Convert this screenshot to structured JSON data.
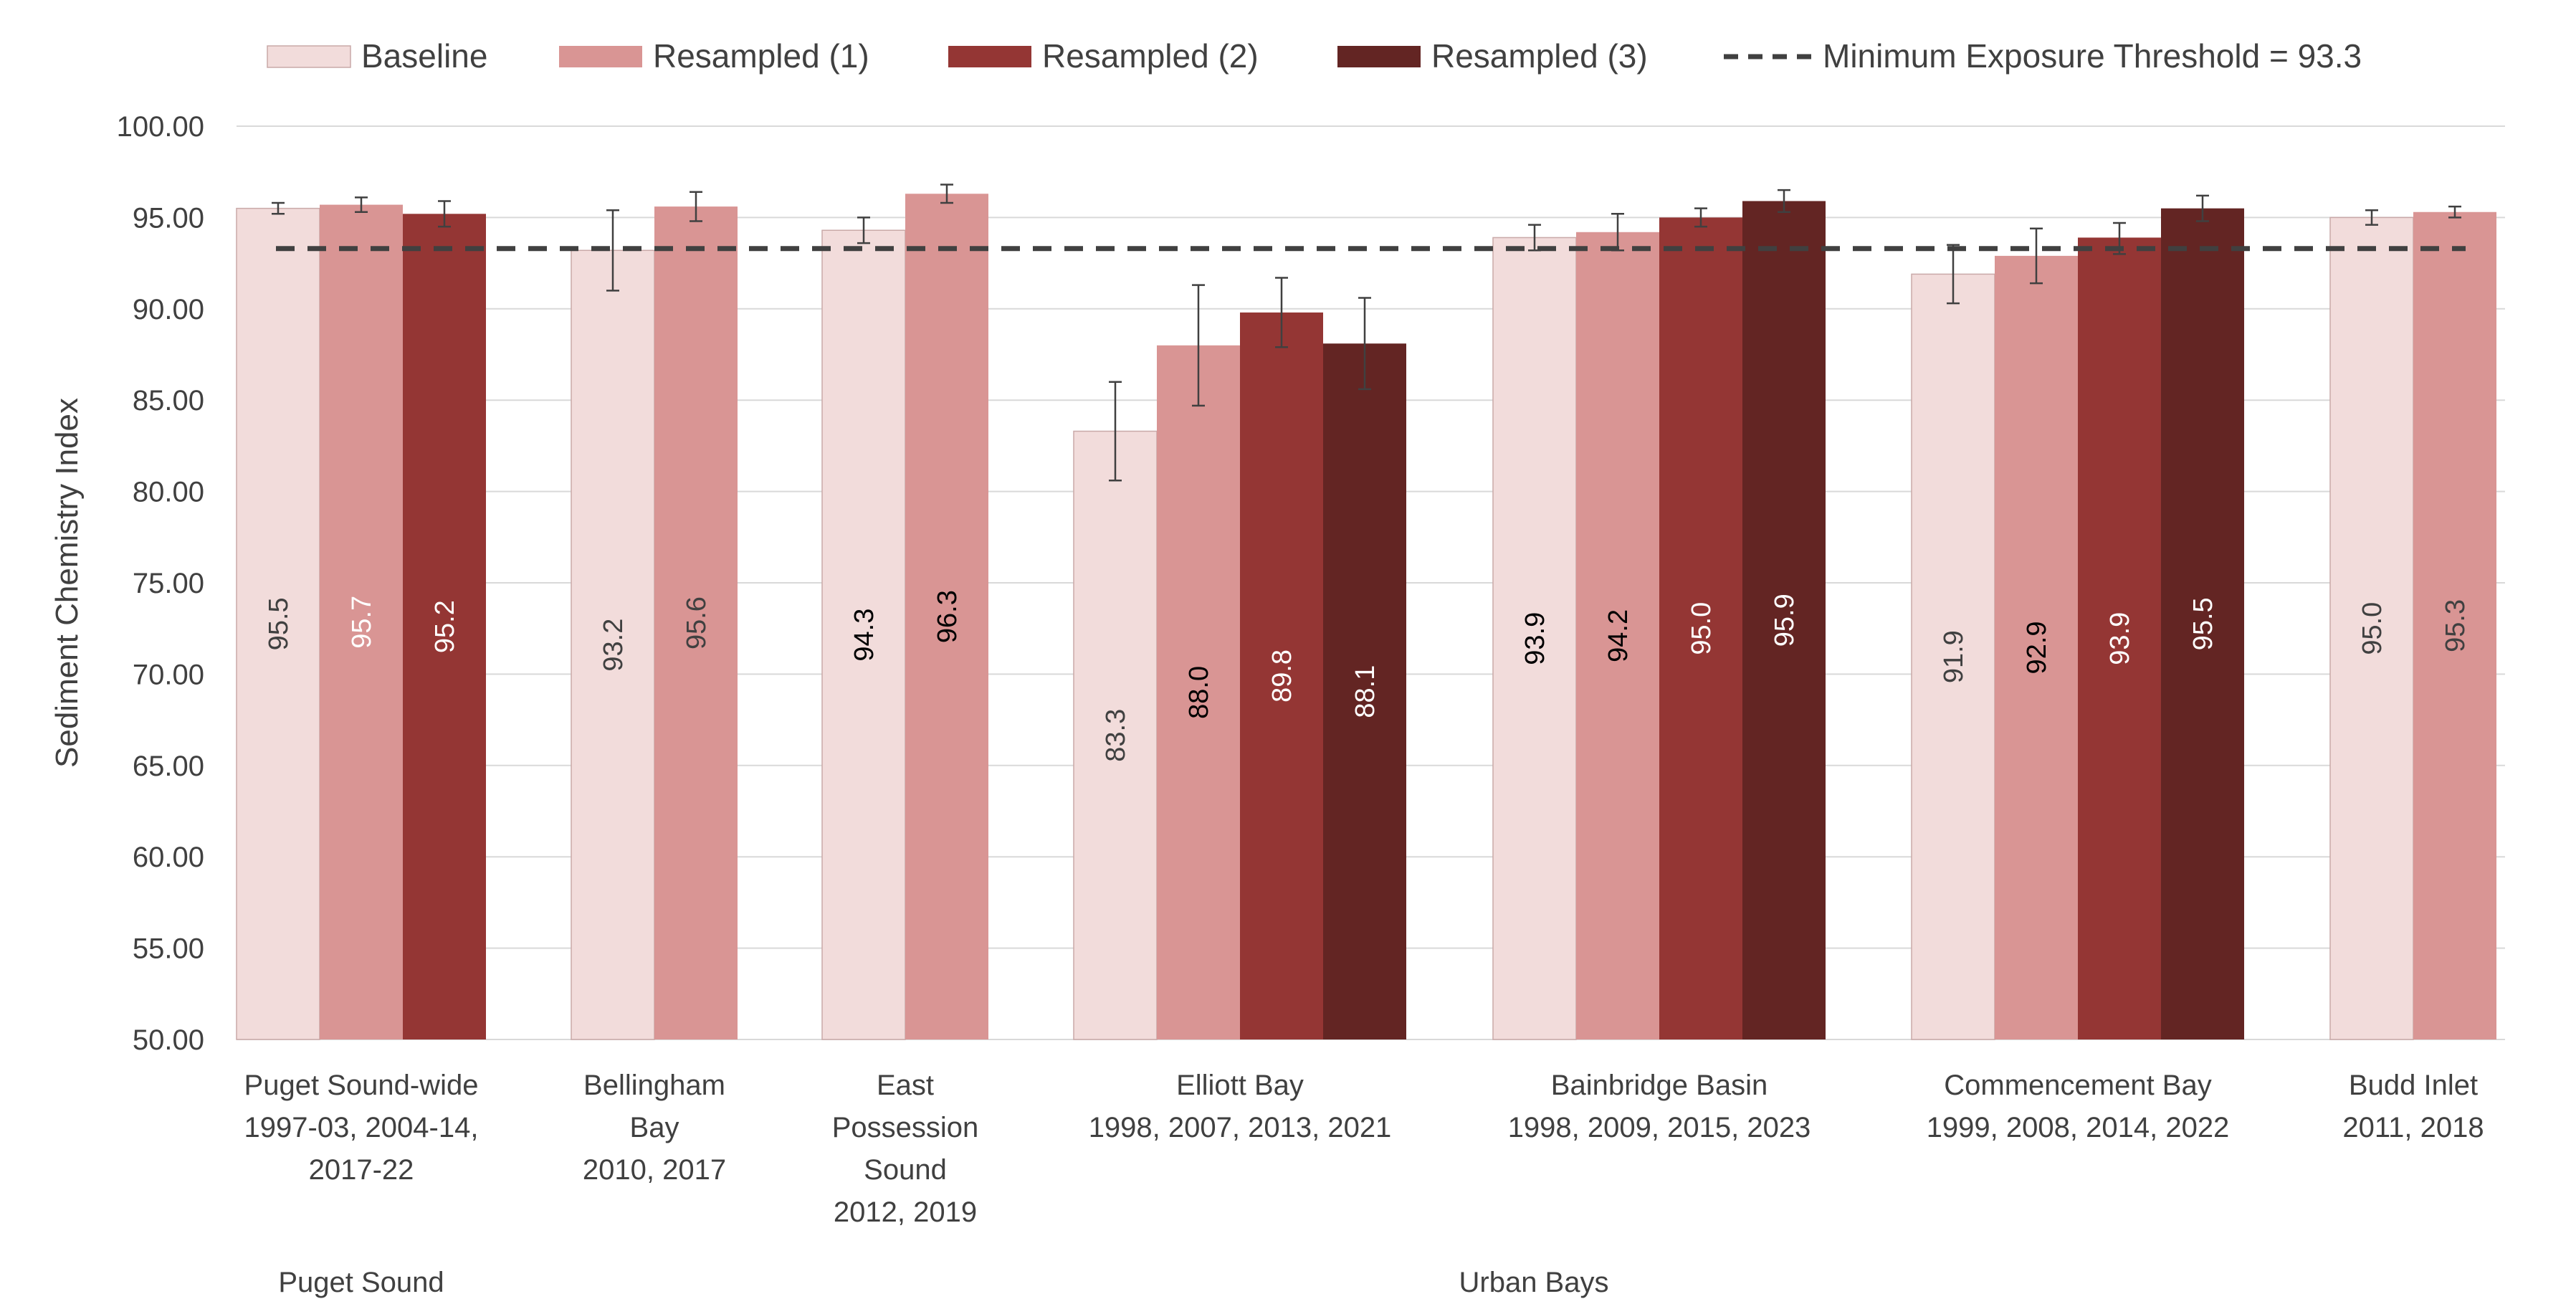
{
  "chart_data": {
    "type": "bar",
    "ylabel": "Sediment Chemistry Index",
    "ylim": [
      50,
      100
    ],
    "yticks": [
      "50.00",
      "55.00",
      "60.00",
      "65.00",
      "70.00",
      "75.00",
      "80.00",
      "85.00",
      "90.00",
      "95.00",
      "100.00"
    ],
    "grid": true,
    "legend_position": "top",
    "series": [
      {
        "name": "Baseline",
        "color": "#F2DCDB"
      },
      {
        "name": "Resampled (1)",
        "color": "#D99594"
      },
      {
        "name": "Resampled (2)",
        "color": "#943634"
      },
      {
        "name": "Resampled (3)",
        "color": "#632523"
      }
    ],
    "threshold": {
      "label": "Minimum Exposure Threshold = 93.3",
      "value": 93.3,
      "color": "#404040"
    },
    "categories": [
      {
        "lines": [
          "Puget Sound-wide",
          "1997-03, 2004-14,",
          "2017-22"
        ],
        "group": 0,
        "values": [
          95.5,
          95.7,
          95.2
        ],
        "labels": [
          "95.5",
          "95.7",
          "95.2"
        ],
        "err": [
          [
            95.2,
            95.8
          ],
          [
            95.3,
            96.1
          ],
          [
            94.5,
            95.9
          ]
        ]
      },
      {
        "lines": [
          "Bellingham",
          "Bay",
          "2010, 2017"
        ],
        "group": 1,
        "values": [
          93.2,
          95.6
        ],
        "labels": [
          "93.2",
          "95.6"
        ],
        "err": [
          [
            91.0,
            95.4
          ],
          [
            94.8,
            96.4
          ]
        ]
      },
      {
        "lines": [
          "East",
          "Possession",
          "Sound",
          "2012, 2019"
        ],
        "group": 1,
        "values": [
          94.3,
          96.3
        ],
        "labels": [
          "94.3",
          "96.3"
        ],
        "err": [
          [
            93.6,
            95.0
          ],
          [
            95.8,
            96.8
          ]
        ]
      },
      {
        "lines": [
          "Elliott Bay",
          "1998, 2007, 2013, 2021"
        ],
        "group": 1,
        "values": [
          83.3,
          88.0,
          89.8,
          88.1
        ],
        "labels": [
          "83.3",
          "88.0",
          "89.8",
          "88.1"
        ],
        "err": [
          [
            80.6,
            86.0
          ],
          [
            84.7,
            91.3
          ],
          [
            87.9,
            91.7
          ],
          [
            85.6,
            90.6
          ]
        ]
      },
      {
        "lines": [
          "Bainbridge Basin",
          "1998, 2009, 2015, 2023"
        ],
        "group": 1,
        "values": [
          93.9,
          94.2,
          95.0,
          95.9
        ],
        "labels": [
          "93.9",
          "94.2",
          "95.0",
          "95.9"
        ],
        "err": [
          [
            93.2,
            94.6
          ],
          [
            93.2,
            95.2
          ],
          [
            94.5,
            95.5
          ],
          [
            95.3,
            96.5
          ]
        ]
      },
      {
        "lines": [
          "Commencement Bay",
          "1999, 2008, 2014, 2022"
        ],
        "group": 1,
        "values": [
          91.9,
          92.9,
          93.9,
          95.5
        ],
        "labels": [
          "91.9",
          "92.9",
          "93.9",
          "95.5"
        ],
        "err": [
          [
            90.3,
            93.5
          ],
          [
            91.4,
            94.4
          ],
          [
            93.0,
            94.7
          ],
          [
            94.8,
            96.2
          ]
        ]
      },
      {
        "lines": [
          "Budd Inlet",
          "2011, 2018"
        ],
        "group": 1,
        "values": [
          95.0,
          95.3
        ],
        "labels": [
          "95.0",
          "95.3"
        ],
        "err": [
          [
            94.6,
            95.4
          ],
          [
            95.0,
            95.6
          ]
        ]
      }
    ],
    "groups": [
      "Puget Sound",
      "Urban Bays"
    ],
    "label_colors": [
      [
        "#404040",
        "#ffffff",
        "#ffffff"
      ],
      [
        "#404040",
        "#404040"
      ],
      [
        "#000000",
        "#000000"
      ],
      [
        "#404040",
        "#000000",
        "#ffffff",
        "#ffffff"
      ],
      [
        "#000000",
        "#000000",
        "#ffffff",
        "#ffffff"
      ],
      [
        "#404040",
        "#000000",
        "#ffffff",
        "#ffffff"
      ],
      [
        "#404040",
        "#404040"
      ]
    ]
  }
}
